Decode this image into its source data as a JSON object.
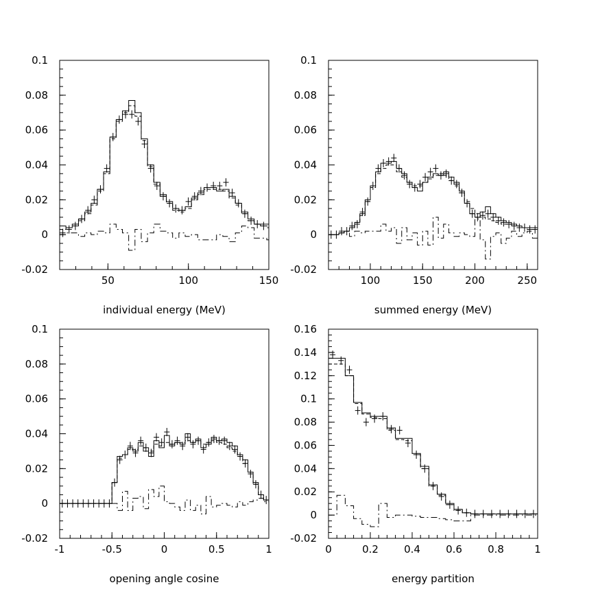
{
  "chart_data": [
    {
      "type": "line",
      "xlabel": "individual energy (MeV)",
      "ylabel": "",
      "xlim": [
        20,
        150
      ],
      "ylim": [
        -0.02,
        0.1
      ],
      "x_ticks": [
        50,
        100,
        150
      ],
      "x_tick_labels": [
        "50",
        "100",
        "150"
      ],
      "y_ticks": [
        -0.02,
        0,
        0.02,
        0.04,
        0.06,
        0.08,
        0.1
      ],
      "y_tick_labels": [
        "-0.02",
        "0",
        "0.02",
        "0.04",
        "0.06",
        "0.08",
        "0.1"
      ],
      "bin_start": 20,
      "bin_width": 3.9,
      "series": [
        {
          "style": "solid",
          "values": [
            0.005,
            0.004,
            0.006,
            0.009,
            0.013,
            0.018,
            0.026,
            0.036,
            0.056,
            0.066,
            0.071,
            0.077,
            0.07,
            0.055,
            0.04,
            0.03,
            0.023,
            0.019,
            0.015,
            0.014,
            0.016,
            0.021,
            0.024,
            0.027,
            0.027,
            0.025,
            0.026,
            0.022,
            0.018,
            0.013,
            0.009,
            0.006,
            0.006,
            0.006
          ]
        },
        {
          "style": "dashed",
          "values": [
            0.003,
            0.004,
            0.005,
            0.008,
            0.012,
            0.017,
            0.025,
            0.035,
            0.055,
            0.065,
            0.07,
            0.074,
            0.068,
            0.054,
            0.039,
            0.029,
            0.022,
            0.018,
            0.014,
            0.013,
            0.015,
            0.02,
            0.023,
            0.026,
            0.026,
            0.026,
            0.025,
            0.021,
            0.017,
            0.012,
            0.008,
            0.006,
            0.005,
            0.005
          ]
        },
        {
          "style": "difference",
          "values": [
            0,
            0.001,
            0.001,
            -0.001,
            0.001,
            0,
            0.002,
            0.001,
            0.006,
            0.003,
            0.001,
            -0.009,
            0.003,
            -0.004,
            0.001,
            0.006,
            0.002,
            0.001,
            -0.002,
            0.001,
            -0.001,
            0,
            -0.003,
            -0.003,
            -0.003,
            0,
            -0.001,
            -0.004,
            0.001,
            0.005,
            0.004,
            -0.002,
            -0.002,
            -0.003
          ]
        },
        {
          "style": "data-points",
          "values": [
            0.001,
            0.003,
            0.005,
            0.009,
            0.014,
            0.02,
            0.026,
            0.038,
            0.056,
            0.066,
            0.069,
            0.069,
            0.065,
            0.052,
            0.038,
            0.028,
            0.022,
            0.018,
            0.015,
            0.014,
            0.019,
            0.022,
            0.025,
            0.027,
            0.028,
            0.028,
            0.03,
            0.024,
            0.018,
            0.012,
            0.008,
            0.006,
            0.005,
            0.004
          ]
        }
      ]
    },
    {
      "type": "line",
      "xlabel": "summed energy (MeV)",
      "ylabel": "",
      "xlim": [
        60,
        260
      ],
      "ylim": [
        -0.02,
        0.1
      ],
      "x_ticks": [
        100,
        150,
        200,
        250
      ],
      "x_tick_labels": [
        "100",
        "150",
        "200",
        "250"
      ],
      "y_ticks": [
        -0.02,
        0,
        0.02,
        0.04,
        0.06,
        0.08,
        0.1
      ],
      "y_tick_labels": [
        "-0.02",
        "0",
        "0.02",
        "0.04",
        "0.06",
        "0.08",
        "0.1"
      ],
      "bin_start": 60,
      "bin_width": 5,
      "series": [
        {
          "style": "solid",
          "values": [
            0,
            0,
            0.001,
            0.002,
            0.004,
            0.007,
            0.012,
            0.02,
            0.028,
            0.036,
            0.041,
            0.041,
            0.042,
            0.038,
            0.035,
            0.03,
            0.027,
            0.025,
            0.03,
            0.033,
            0.035,
            0.034,
            0.036,
            0.033,
            0.03,
            0.025,
            0.018,
            0.012,
            0.01,
            0.013,
            0.016,
            0.012,
            0.01,
            0.008,
            0.007,
            0.006,
            0.005,
            0.004,
            0.004,
            0.004
          ]
        },
        {
          "style": "dashed",
          "values": [
            0,
            0,
            0.001,
            0.002,
            0.004,
            0.007,
            0.011,
            0.019,
            0.027,
            0.035,
            0.038,
            0.04,
            0.04,
            0.036,
            0.033,
            0.03,
            0.028,
            0.028,
            0.03,
            0.032,
            0.034,
            0.035,
            0.034,
            0.031,
            0.028,
            0.024,
            0.019,
            0.015,
            0.012,
            0.01,
            0.009,
            0.008,
            0.007,
            0.006,
            0.006,
            0.005,
            0.004,
            0.004,
            0.003,
            0.003
          ]
        },
        {
          "style": "difference",
          "values": [
            0,
            0,
            0.001,
            0.002,
            -0.001,
            0.002,
            0.001,
            0.002,
            0.002,
            0.002,
            0.006,
            0.002,
            0.004,
            -0.005,
            0.004,
            -0.003,
            0.001,
            -0.006,
            0.002,
            -0.006,
            0.01,
            -0.002,
            0.006,
            0.001,
            -0.001,
            0.001,
            0,
            -0.001,
            0.009,
            -0.003,
            -0.014,
            -0.001,
            0.001,
            -0.005,
            -0.002,
            0.002,
            -0.001,
            0.001,
            0.002,
            -0.002
          ]
        },
        {
          "style": "data-points",
          "values": [
            0,
            0,
            0.002,
            0.002,
            0.005,
            0.006,
            0.013,
            0.019,
            0.028,
            0.038,
            0.041,
            0.042,
            0.044,
            0.038,
            0.034,
            0.029,
            0.027,
            0.029,
            0.033,
            0.036,
            0.038,
            0.034,
            0.035,
            0.031,
            0.029,
            0.024,
            0.018,
            0.012,
            0.01,
            0.011,
            0.012,
            0.01,
            0.008,
            0.007,
            0.006,
            0.005,
            0.004,
            0.004,
            0.003,
            0.003
          ]
        }
      ]
    },
    {
      "type": "line",
      "xlabel": "opening angle cosine",
      "ylabel": "",
      "xlim": [
        -1,
        1
      ],
      "ylim": [
        -0.02,
        0.1
      ],
      "x_ticks": [
        -1,
        -0.5,
        0,
        0.5,
        1
      ],
      "x_tick_labels": [
        "-1",
        "-0.5",
        "0",
        "0.5",
        "1"
      ],
      "y_ticks": [
        -0.02,
        0,
        0.02,
        0.04,
        0.06,
        0.08,
        0.1
      ],
      "y_tick_labels": [
        "-0.02",
        "0",
        "0.02",
        "0.04",
        "0.06",
        "0.08",
        "0.1"
      ],
      "bin_start": -1,
      "bin_width": 0.05,
      "series": [
        {
          "style": "solid",
          "values": [
            0,
            0,
            0,
            0,
            0,
            0,
            0,
            0,
            0,
            0,
            0.012,
            0.027,
            0.028,
            0.032,
            0.03,
            0.035,
            0.03,
            0.027,
            0.036,
            0.032,
            0.039,
            0.033,
            0.035,
            0.034,
            0.04,
            0.035,
            0.037,
            0.032,
            0.034,
            0.038,
            0.036,
            0.037,
            0.035,
            0.033,
            0.028,
            0.025,
            0.018,
            0.012,
            0.005,
            0.002
          ]
        },
        {
          "style": "dashed",
          "values": [
            0,
            0,
            0,
            0,
            0,
            0,
            0,
            0,
            0,
            0,
            0.012,
            0.026,
            0.028,
            0.031,
            0.031,
            0.033,
            0.032,
            0.03,
            0.034,
            0.033,
            0.035,
            0.034,
            0.035,
            0.035,
            0.036,
            0.035,
            0.036,
            0.034,
            0.035,
            0.036,
            0.035,
            0.034,
            0.032,
            0.03,
            0.027,
            0.023,
            0.017,
            0.011,
            0.005,
            0.002
          ]
        },
        {
          "style": "difference",
          "values": [
            0,
            0,
            0,
            0,
            0,
            0,
            0,
            0,
            0,
            0,
            0,
            -0.004,
            0.007,
            -0.004,
            0.003,
            0.004,
            -0.003,
            0.008,
            0.004,
            0.01,
            0.001,
            0,
            -0.002,
            -0.004,
            0.002,
            -0.004,
            -0.001,
            -0.006,
            0.004,
            -0.002,
            -0.001,
            0,
            -0.001,
            -0.002,
            0.001,
            -0.001,
            0.001,
            0.002,
            0.003,
            0.001
          ]
        },
        {
          "style": "data-points",
          "values": [
            0,
            0,
            0,
            0,
            0,
            0,
            0,
            0,
            0,
            0,
            0.012,
            0.025,
            0.028,
            0.033,
            0.029,
            0.036,
            0.032,
            0.029,
            0.038,
            0.035,
            0.041,
            0.034,
            0.036,
            0.033,
            0.038,
            0.034,
            0.036,
            0.031,
            0.035,
            0.037,
            0.036,
            0.036,
            0.033,
            0.031,
            0.027,
            0.023,
            0.017,
            0.011,
            0.005,
            0.002
          ]
        }
      ]
    },
    {
      "type": "line",
      "xlabel": "energy partition",
      "ylabel": "",
      "xlim": [
        0,
        1
      ],
      "ylim": [
        -0.02,
        0.16
      ],
      "x_ticks": [
        0,
        0.2,
        0.4,
        0.6,
        0.8,
        1
      ],
      "x_tick_labels": [
        "0",
        "0.2",
        "0.4",
        "0.6",
        "0.8",
        "1"
      ],
      "y_ticks": [
        -0.02,
        0,
        0.02,
        0.04,
        0.06,
        0.08,
        0.1,
        0.12,
        0.14,
        0.16
      ],
      "y_tick_labels": [
        "-0.02",
        "0",
        "0.02",
        "0.04",
        "0.06",
        "0.08",
        "0.1",
        "0.12",
        "0.14",
        "0.16"
      ],
      "bin_start": 0,
      "bin_width": 0.04,
      "series": [
        {
          "style": "solid",
          "values": [
            0.135,
            0.135,
            0.12,
            0.097,
            0.088,
            0.085,
            0.085,
            0.075,
            0.066,
            0.066,
            0.053,
            0.042,
            0.026,
            0.018,
            0.01,
            0.005,
            0.002,
            0.001,
            0.001,
            0.001,
            0.001,
            0.001,
            0.001,
            0.001,
            0.001
          ]
        },
        {
          "style": "dashed",
          "values": [
            0.13,
            0.13,
            0.12,
            0.096,
            0.087,
            0.084,
            0.083,
            0.073,
            0.065,
            0.064,
            0.052,
            0.04,
            0.025,
            0.017,
            0.009,
            0.004,
            0.002,
            0.001,
            0.001,
            0.001,
            0.001,
            0.001,
            0.001,
            0.001,
            0.001
          ]
        },
        {
          "style": "difference",
          "values": [
            0,
            0.017,
            0.008,
            -0.003,
            -0.008,
            -0.01,
            0.01,
            -0.002,
            0,
            0,
            -0.001,
            -0.002,
            -0.002,
            -0.003,
            -0.004,
            -0.005,
            -0.005,
            0,
            0,
            0,
            0,
            0,
            0,
            0,
            0
          ]
        },
        {
          "style": "data-points",
          "values": [
            0.138,
            0.133,
            0.125,
            0.09,
            0.08,
            0.083,
            0.085,
            0.074,
            0.073,
            0.062,
            0.052,
            0.04,
            0.025,
            0.016,
            0.009,
            0.004,
            0.002,
            0.001,
            0.001,
            0.001,
            0.001,
            0.001,
            0.001,
            0.001,
            0.001
          ]
        }
      ]
    }
  ]
}
